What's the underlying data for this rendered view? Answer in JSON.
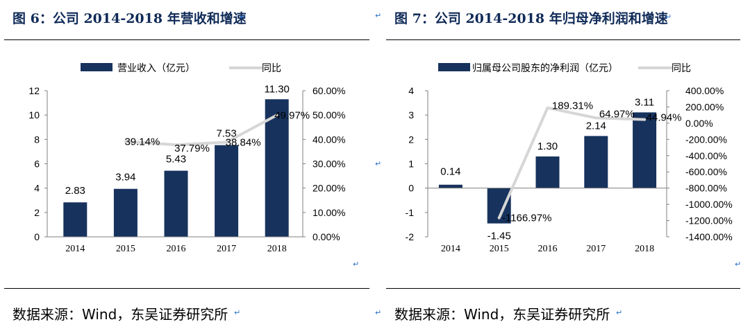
{
  "page": {
    "return_mark": "↵",
    "left": {
      "title": "图 6：公司 2014-2018 年营收和增速",
      "source": "数据来源：Wind，东吴证券研究所"
    },
    "right": {
      "title": "图 7：公司 2014-2018 年归母净利润和增速",
      "source": "数据来源：Wind，东吴证券研究所"
    }
  },
  "chart_data": [
    {
      "type": "bar",
      "title": "图 6：公司 2014-2018 年营收和增速",
      "categories": [
        "2014",
        "2015",
        "2016",
        "2017",
        "2018"
      ],
      "series": [
        {
          "name": "营业收入（亿元）",
          "kind": "bar",
          "axis": "left",
          "values": [
            2.83,
            3.94,
            5.43,
            7.53,
            11.3
          ],
          "labels": [
            "2.83",
            "3.94",
            "5.43",
            "7.53",
            "11.30"
          ]
        },
        {
          "name": "同比",
          "kind": "line",
          "axis": "right",
          "values": [
            null,
            39.14,
            37.79,
            38.84,
            49.97
          ],
          "labels": [
            "",
            "39.14%",
            "37.79%",
            "38.84%",
            "49.97%"
          ]
        }
      ],
      "y_left": {
        "min": 0,
        "max": 12,
        "ticks": [
          "0",
          "2",
          "4",
          "6",
          "8",
          "10",
          "12"
        ]
      },
      "y_right": {
        "min": 0,
        "max": 60,
        "ticks": [
          "0.00%",
          "10.00%",
          "20.00%",
          "30.00%",
          "40.00%",
          "50.00%",
          "60.00%"
        ]
      },
      "legend_position": "top",
      "grid": false
    },
    {
      "type": "bar",
      "title": "图 7：公司 2014-2018 年归母净利润和增速",
      "categories": [
        "2014",
        "2015",
        "2016",
        "2017",
        "2018"
      ],
      "series": [
        {
          "name": "归属母公司股东的净利润（亿元）",
          "kind": "bar",
          "axis": "left",
          "values": [
            0.14,
            -1.45,
            1.3,
            2.14,
            3.11
          ],
          "labels": [
            "0.14",
            "-1.45",
            "1.30",
            "2.14",
            "3.11"
          ]
        },
        {
          "name": "同比",
          "kind": "line",
          "axis": "right",
          "values": [
            null,
            -1166.97,
            189.31,
            64.97,
            44.94
          ],
          "labels": [
            "",
            "-1166.97%",
            "189.31%",
            "64.97%",
            "44.94%"
          ]
        }
      ],
      "y_left": {
        "min": -2,
        "max": 4,
        "ticks": [
          "-2",
          "-1",
          "0",
          "1",
          "2",
          "3",
          "4"
        ]
      },
      "y_right": {
        "min": -1400,
        "max": 400,
        "ticks": [
          "-1400.00%",
          "-1200.00%",
          "-1000.00%",
          "-800.00%",
          "-600.00%",
          "-400.00%",
          "-200.00%",
          "0.00%",
          "200.00%",
          "400.00%"
        ]
      },
      "legend_position": "top",
      "grid": false
    }
  ]
}
